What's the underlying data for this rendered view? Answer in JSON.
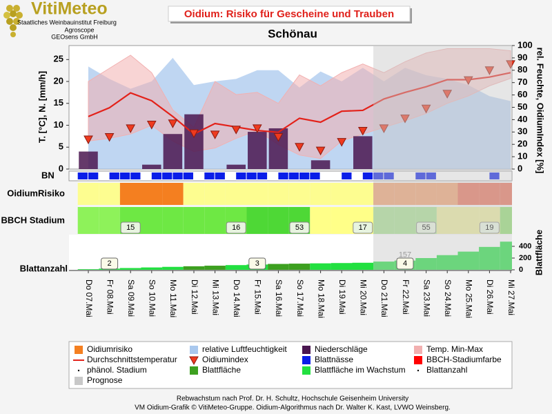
{
  "header": {
    "logo": "VitiMeteo",
    "lines": [
      "Staatliches Weinbauinstitut Freiburg",
      "Agroscope",
      "GEOsens GmbH"
    ]
  },
  "chart_data": {
    "type": "line",
    "title": "Oidium: Risiko für Gescheine und Trauben",
    "subtitle": "Schönau",
    "y_label": "T. [°C], N. [mm/h]",
    "y2_label": "rel. Feuchte, OidiumIndex [%]",
    "ylim": [
      0,
      28.2
    ],
    "yticks": [
      0,
      5,
      10,
      15,
      20,
      25
    ],
    "y2lim": [
      0,
      100
    ],
    "y2ticks": [
      0,
      10,
      20,
      30,
      40,
      50,
      60,
      70,
      80,
      90,
      100
    ],
    "categories": [
      "Do 07.Mai",
      "Fr 08.Mai",
      "Sa 09.Mai",
      "So 10.Mai",
      "Mo 11.Mai",
      "Di 12.Mai",
      "Mi 13.Mai",
      "Do 14.Mai",
      "Fr 15.Mai",
      "Sa 16.Mai",
      "So 17.Mai",
      "Mo 18.Mai",
      "Di 19.Mai",
      "Mi 20.Mai",
      "Do 21.Mai",
      "Fr 22.Mai",
      "Sa 23.Mai",
      "So 24.Mai",
      "Mo 25.Mai",
      "Di 26.Mai",
      "Mi 27.Mai"
    ],
    "forecast": [
      false,
      false,
      false,
      false,
      false,
      false,
      false,
      false,
      false,
      false,
      false,
      false,
      false,
      false,
      true,
      true,
      true,
      true,
      true,
      true,
      true
    ],
    "forecast_name": "Prognose",
    "forecast_color": "#c8c8c8",
    "series": [
      {
        "name": "relative Luftfeuchtigkeit",
        "type": "area",
        "axis": "y2",
        "color": "#a9c8ee",
        "values": [
          83,
          73,
          65,
          71,
          90,
          68,
          71,
          73,
          80,
          80,
          66,
          79,
          71,
          82,
          71,
          82,
          76,
          73,
          68,
          59,
          55
        ]
      },
      {
        "name": "Temp. Min-Max",
        "type": "band",
        "color": "#f2b0b0",
        "values": [
          20,
          23,
          26,
          22,
          13.5,
          9.5,
          20,
          17,
          17.5,
          15,
          21.5,
          19,
          22,
          24,
          22,
          24.5,
          26.5,
          27.5,
          27.5,
          27.5,
          27
        ],
        "min_values": [
          6.4,
          7,
          8,
          10,
          6.4,
          4,
          4.8,
          7,
          8.8,
          5.6,
          3.2,
          2.4,
          6.4,
          8,
          9.5,
          11,
          12.7,
          15,
          16.7,
          19,
          20.7
        ]
      },
      {
        "name": "Niederschläge",
        "type": "bar",
        "color": "#4a1650",
        "values": [
          4,
          0,
          0,
          1,
          8,
          12.5,
          0,
          1,
          8.5,
          9.3,
          0,
          2,
          0,
          7.5,
          0,
          0,
          0,
          0,
          0,
          0,
          0
        ]
      },
      {
        "name": "Durchschnittstemperatur",
        "type": "line",
        "color": "#e32119",
        "values": [
          12,
          14,
          17.4,
          15.6,
          12,
          8,
          10.4,
          9.6,
          8.8,
          8.4,
          11.6,
          10.7,
          13.2,
          13.4,
          16,
          17.5,
          18.8,
          20.4,
          20.4,
          21,
          22
        ]
      },
      {
        "name": "Oidiumindex",
        "type": "marker",
        "axis": "y2",
        "color": "#ee3a1f",
        "values": [
          24,
          26,
          33,
          36,
          37,
          29,
          28,
          32,
          33,
          26,
          18,
          15,
          22,
          31,
          33,
          41,
          49,
          61,
          72,
          80,
          85
        ]
      }
    ],
    "bn": {
      "label": "BN",
      "name": "Blattnässe",
      "color": "#0a1ee8",
      "values": [
        1,
        1,
        0,
        1,
        1,
        1,
        0,
        1,
        1,
        1,
        1,
        0,
        1,
        1,
        0,
        1,
        1,
        1,
        0,
        1,
        1,
        1,
        1,
        0,
        0,
        1,
        0,
        1,
        1,
        1,
        0,
        0,
        1,
        1,
        0,
        0,
        0,
        0,
        0,
        1,
        0,
        0
      ]
    },
    "risk": {
      "label": "OidiumRisiko",
      "name": "Oidiumrisiko",
      "color": "#f47f20",
      "colors": [
        "#fdfd90",
        "#fdfd90",
        "#f47f20",
        "#f47f20",
        "#f47f20",
        "#fdfd90",
        "#fdfd90",
        "#fdfd90",
        "#fdfd90",
        "#fdfd90",
        "#fdfd90",
        "#fdfd90",
        "#fdfd90",
        "#fdfd90",
        "#f0a070",
        "#f0a070",
        "#f0a070",
        "#f0a070",
        "#e87058",
        "#e87058",
        "#e87058"
      ]
    },
    "bbch": {
      "label": "BBCH Stadium",
      "name": "BBCH-Stadiumfarbe",
      "color": "#ff0000",
      "stage_name": "phänol. Stadium",
      "colors": [
        "#8ef25a",
        "#8ef25a",
        "#6ee844",
        "#6ee844",
        "#6ee844",
        "#6ee844",
        "#6ee844",
        "#6ee844",
        "#4ed836",
        "#4ed836",
        "#4ed836",
        "#ffff88",
        "#ffff88",
        "#ffff88",
        "#a8e090",
        "#a8e090",
        "#a8e090",
        "#ecec9c",
        "#ecec9c",
        "#ecec9c",
        "#90dc70"
      ],
      "stages": [
        null,
        null,
        15,
        null,
        null,
        null,
        null,
        16,
        null,
        null,
        53,
        null,
        null,
        17,
        null,
        null,
        55,
        null,
        null,
        19,
        null
      ]
    },
    "leaf": {
      "axis_label": "Blattfläche",
      "name": "Blattfläche",
      "growth_name": "Blattfläche im Wachstum",
      "count_name": "Blattanzahl",
      "color": "#3da020",
      "growth_color": "#22e040",
      "ylim": [
        0,
        600
      ],
      "yticks": [
        0,
        200,
        400
      ],
      "values": [
        10,
        20,
        30,
        40,
        50,
        60,
        70,
        80,
        90,
        100,
        105,
        110,
        115,
        120,
        140,
        157,
        200,
        250,
        310,
        390,
        480
      ],
      "value_labels": [
        null,
        null,
        null,
        null,
        null,
        null,
        null,
        null,
        null,
        null,
        null,
        null,
        null,
        null,
        null,
        "157",
        null,
        null,
        null,
        null,
        null
      ],
      "growing": [
        true,
        true,
        true,
        true,
        true,
        false,
        false,
        true,
        true,
        false,
        false,
        true,
        true,
        true,
        true,
        true,
        true,
        true,
        true,
        true,
        true
      ],
      "counts": [
        null,
        2,
        null,
        null,
        null,
        null,
        null,
        null,
        3,
        null,
        null,
        null,
        null,
        null,
        null,
        4,
        null,
        null,
        null,
        null,
        null
      ]
    }
  },
  "footer": [
    "Rebwachstum nach Prof. Dr. H. Schultz, Hochschule Geisenheim University",
    "VM Oidium-Grafik © VitiMeteo-Gruppe. Oidium-Algorithmus nach Dr. Walter K. Kast, LVWO Weinsberg."
  ]
}
